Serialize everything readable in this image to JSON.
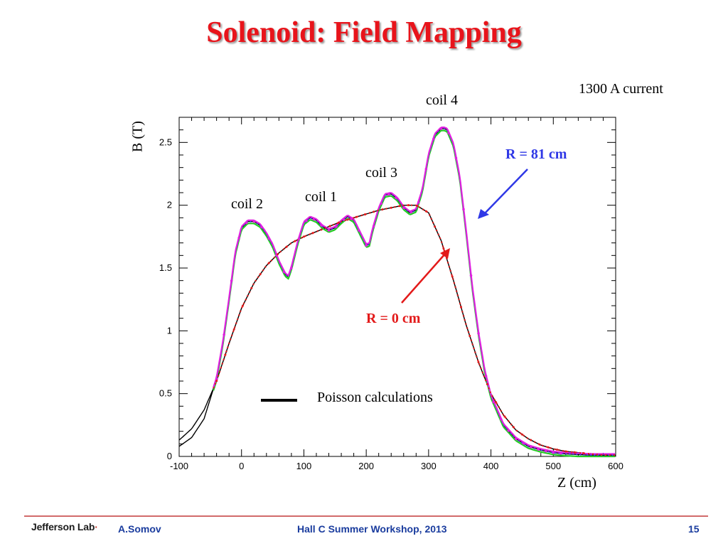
{
  "slide": {
    "title": "Solenoid: Field Mapping",
    "current_note": "1300 A  current"
  },
  "footer": {
    "logo": "Jefferson Lab",
    "author": "A.Somov",
    "event": "Hall C Summer Workshop, 2013",
    "page": "15"
  },
  "colors": {
    "title": "#e8141b",
    "r81_label": "#2f38e6",
    "r0_label": "#e31a1a",
    "magenta_series": "#e020e0",
    "blue_series": "#2f38e6",
    "green_series": "#22cc22",
    "red_series": "#e31a1a",
    "calc_line": "#000000"
  },
  "chart_data": {
    "type": "line",
    "xlabel": "Z    (cm)",
    "ylabel": "B   (T)",
    "xlim": [
      -100,
      600
    ],
    "ylim": [
      0,
      2.7
    ],
    "xticks": [
      -100,
      0,
      100,
      200,
      300,
      400,
      500,
      600
    ],
    "yticks": [
      0,
      0.5,
      1,
      1.5,
      2,
      2.5
    ],
    "legend": {
      "label": "Poisson calculations",
      "position": "lower-center"
    },
    "annotations": [
      {
        "text": "coil 2",
        "x": 15,
        "y": 2.0
      },
      {
        "text": "coil 1",
        "x": 115,
        "y": 2.04
      },
      {
        "text": "coil 3",
        "x": 230,
        "y": 2.24
      },
      {
        "text": "coil 4",
        "x": 325,
        "y": 2.82
      },
      {
        "text": "R = 81 cm",
        "x": 450,
        "y": 2.4
      },
      {
        "text": "R = 0 cm",
        "x": 240,
        "y": 1.1
      }
    ],
    "series": [
      {
        "name": "R = 0 cm",
        "x": [
          -100,
          -80,
          -60,
          -40,
          -20,
          0,
          20,
          40,
          60,
          80,
          100,
          120,
          140,
          160,
          180,
          200,
          220,
          240,
          260,
          280,
          300,
          320,
          340,
          360,
          380,
          400,
          420,
          440,
          460,
          480,
          500,
          520,
          540,
          560,
          580,
          600
        ],
        "y": [
          0.13,
          0.22,
          0.37,
          0.6,
          0.9,
          1.18,
          1.38,
          1.52,
          1.62,
          1.7,
          1.75,
          1.79,
          1.83,
          1.87,
          1.9,
          1.93,
          1.96,
          1.98,
          2.0,
          2.0,
          1.94,
          1.72,
          1.4,
          1.05,
          0.75,
          0.5,
          0.33,
          0.21,
          0.14,
          0.09,
          0.06,
          0.04,
          0.03,
          0.02,
          0.01,
          0.01
        ]
      },
      {
        "name": "R = 81 cm",
        "x": [
          -100,
          -80,
          -60,
          -40,
          -30,
          -20,
          -10,
          0,
          10,
          20,
          30,
          40,
          50,
          60,
          70,
          75,
          80,
          90,
          100,
          110,
          120,
          130,
          140,
          150,
          160,
          170,
          180,
          190,
          200,
          205,
          210,
          220,
          230,
          240,
          250,
          260,
          270,
          280,
          290,
          300,
          310,
          320,
          325,
          330,
          340,
          350,
          360,
          370,
          380,
          390,
          400,
          420,
          440,
          460,
          480,
          500,
          520,
          540,
          560,
          580,
          600
        ],
        "y": [
          0.08,
          0.15,
          0.3,
          0.62,
          0.9,
          1.25,
          1.62,
          1.82,
          1.87,
          1.87,
          1.84,
          1.77,
          1.68,
          1.55,
          1.45,
          1.43,
          1.5,
          1.7,
          1.86,
          1.9,
          1.88,
          1.83,
          1.8,
          1.82,
          1.87,
          1.91,
          1.88,
          1.78,
          1.68,
          1.69,
          1.8,
          1.97,
          2.08,
          2.09,
          2.05,
          1.98,
          1.94,
          1.96,
          2.12,
          2.4,
          2.56,
          2.61,
          2.61,
          2.6,
          2.48,
          2.22,
          1.8,
          1.35,
          0.98,
          0.68,
          0.48,
          0.25,
          0.14,
          0.08,
          0.05,
          0.03,
          0.02,
          0.015,
          0.01,
          0.01,
          0.01
        ]
      }
    ]
  }
}
